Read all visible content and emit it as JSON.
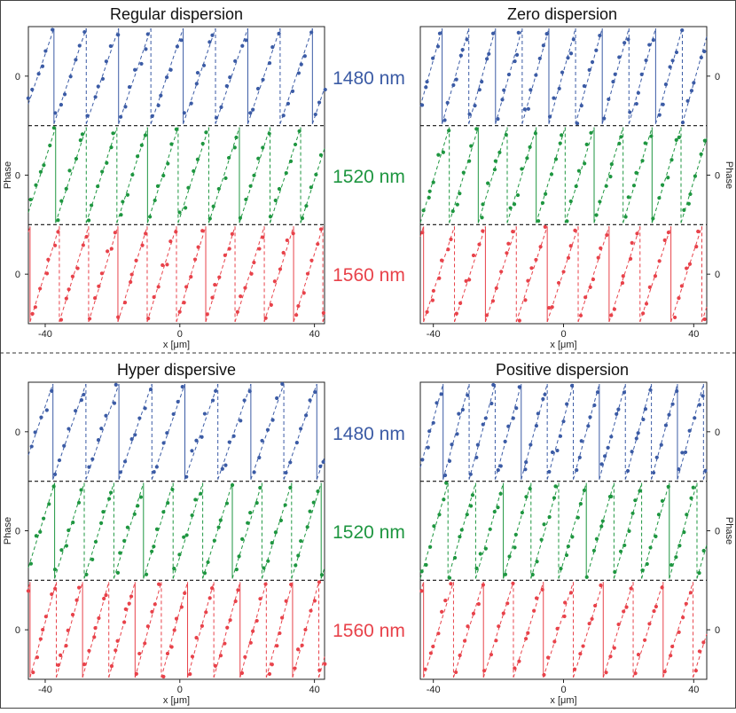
{
  "figure": {
    "wavelength_labels": [
      "1480 nm",
      "1520 nm",
      "1560 nm"
    ]
  },
  "chart_data": [
    {
      "type": "scatter",
      "title": "Regular dispersion",
      "xlabel": "x [μm]",
      "ylabel": "Phase",
      "xlim": [
        -45,
        43
      ],
      "xticks": [
        -40,
        0,
        40
      ],
      "yticks_label": "0",
      "series": [
        {
          "name": "1480 nm",
          "color": "#3b5ba5",
          "period": 9.6,
          "offset": -2.0,
          "solid_every": 2
        },
        {
          "name": "1520 nm",
          "color": "#1e9640",
          "period": 9.1,
          "offset": -1.0,
          "solid_every": 3
        },
        {
          "name": "1560 nm",
          "color": "#e8424a",
          "period": 8.7,
          "offset": 0.5,
          "solid_every": 3
        }
      ]
    },
    {
      "type": "scatter",
      "title": "Zero dispersion",
      "xlabel": "x [μm]",
      "ylabel": "Phase",
      "xlim": [
        -44,
        44
      ],
      "xticks": [
        -40,
        0,
        40
      ],
      "yticks_label": "0",
      "series": [
        {
          "name": "1480 nm",
          "color": "#3b5ba5",
          "period": 8.2,
          "offset": -1.5,
          "solid_every": 2
        },
        {
          "name": "1520 nm",
          "color": "#1e9640",
          "period": 8.9,
          "offset": 0.0,
          "solid_every": 2
        },
        {
          "name": "1560 nm",
          "color": "#e8424a",
          "period": 9.5,
          "offset": 1.0,
          "solid_every": 2
        }
      ]
    },
    {
      "type": "scatter",
      "title": "Hyper dispersive",
      "xlabel": "x [μm]",
      "ylabel": "Phase",
      "xlim": [
        -45,
        43
      ],
      "xticks": [
        -40,
        0,
        40
      ],
      "yticks_label": "0",
      "series": [
        {
          "name": "1480 nm",
          "color": "#3b5ba5",
          "period": 9.8,
          "offset": -2.5,
          "solid_every": 2
        },
        {
          "name": "1520 nm",
          "color": "#1e9640",
          "period": 8.8,
          "offset": -1.0,
          "solid_every": 3
        },
        {
          "name": "1560 nm",
          "color": "#e8424a",
          "period": 7.8,
          "offset": 0.5,
          "solid_every": 2
        }
      ]
    },
    {
      "type": "scatter",
      "title": "Positive dispersion",
      "xlabel": "x [μm]",
      "ylabel": "Phase",
      "xlim": [
        -44,
        44
      ],
      "xticks": [
        -40,
        0,
        40
      ],
      "yticks_label": "0",
      "series": [
        {
          "name": "1480 nm",
          "color": "#3b5ba5",
          "period": 8.0,
          "offset": -1.0,
          "solid_every": 3
        },
        {
          "name": "1520 nm",
          "color": "#1e9640",
          "period": 8.5,
          "offset": 0.0,
          "solid_every": 3
        },
        {
          "name": "1560 nm",
          "color": "#e8424a",
          "period": 9.2,
          "offset": 1.0,
          "solid_every": 2
        }
      ]
    }
  ]
}
